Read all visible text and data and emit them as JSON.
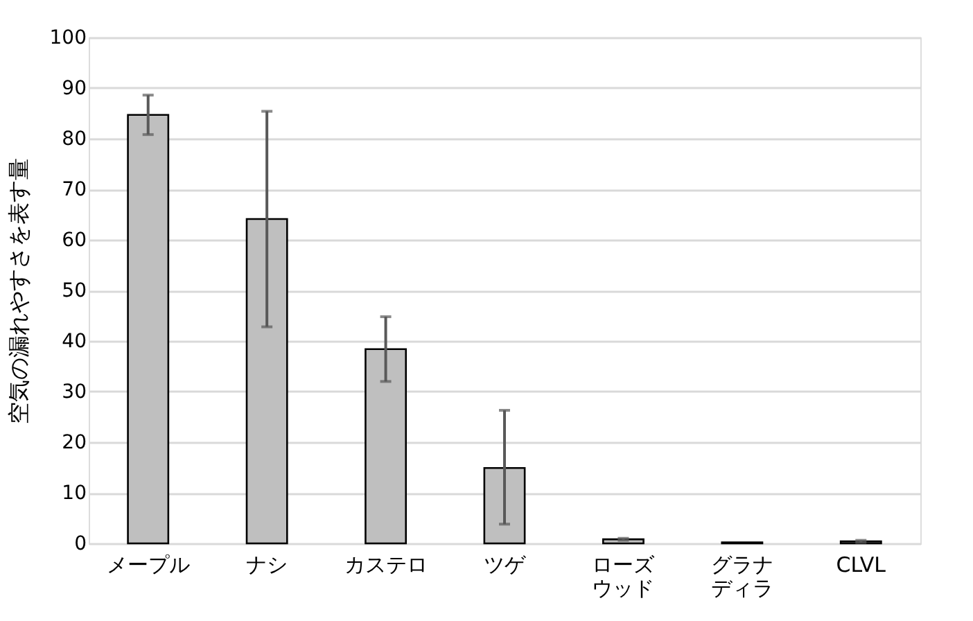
{
  "chart_data": {
    "type": "bar",
    "ylabel": "空気の漏れやすさを表す量",
    "categories": [
      "メープル",
      "ナシ",
      "カステロ",
      "ツゲ",
      "ローズウッド",
      "グラナディラ",
      "CLVL"
    ],
    "values": [
      84.7,
      64.1,
      38.4,
      14.9,
      0.8,
      0.2,
      0.4
    ],
    "errors": [
      [
        80.8,
        88.6
      ],
      [
        42.8,
        85.4
      ],
      [
        32.0,
        44.8
      ],
      [
        3.8,
        26.3
      ],
      [
        0.6,
        1.0
      ],
      null,
      [
        0.2,
        0.6
      ]
    ],
    "color": "#bfbfbf",
    "ylim": [
      0,
      100
    ],
    "yticks": [
      0,
      10,
      20,
      30,
      40,
      50,
      60,
      70,
      80,
      90,
      100
    ],
    "grid": "y"
  }
}
